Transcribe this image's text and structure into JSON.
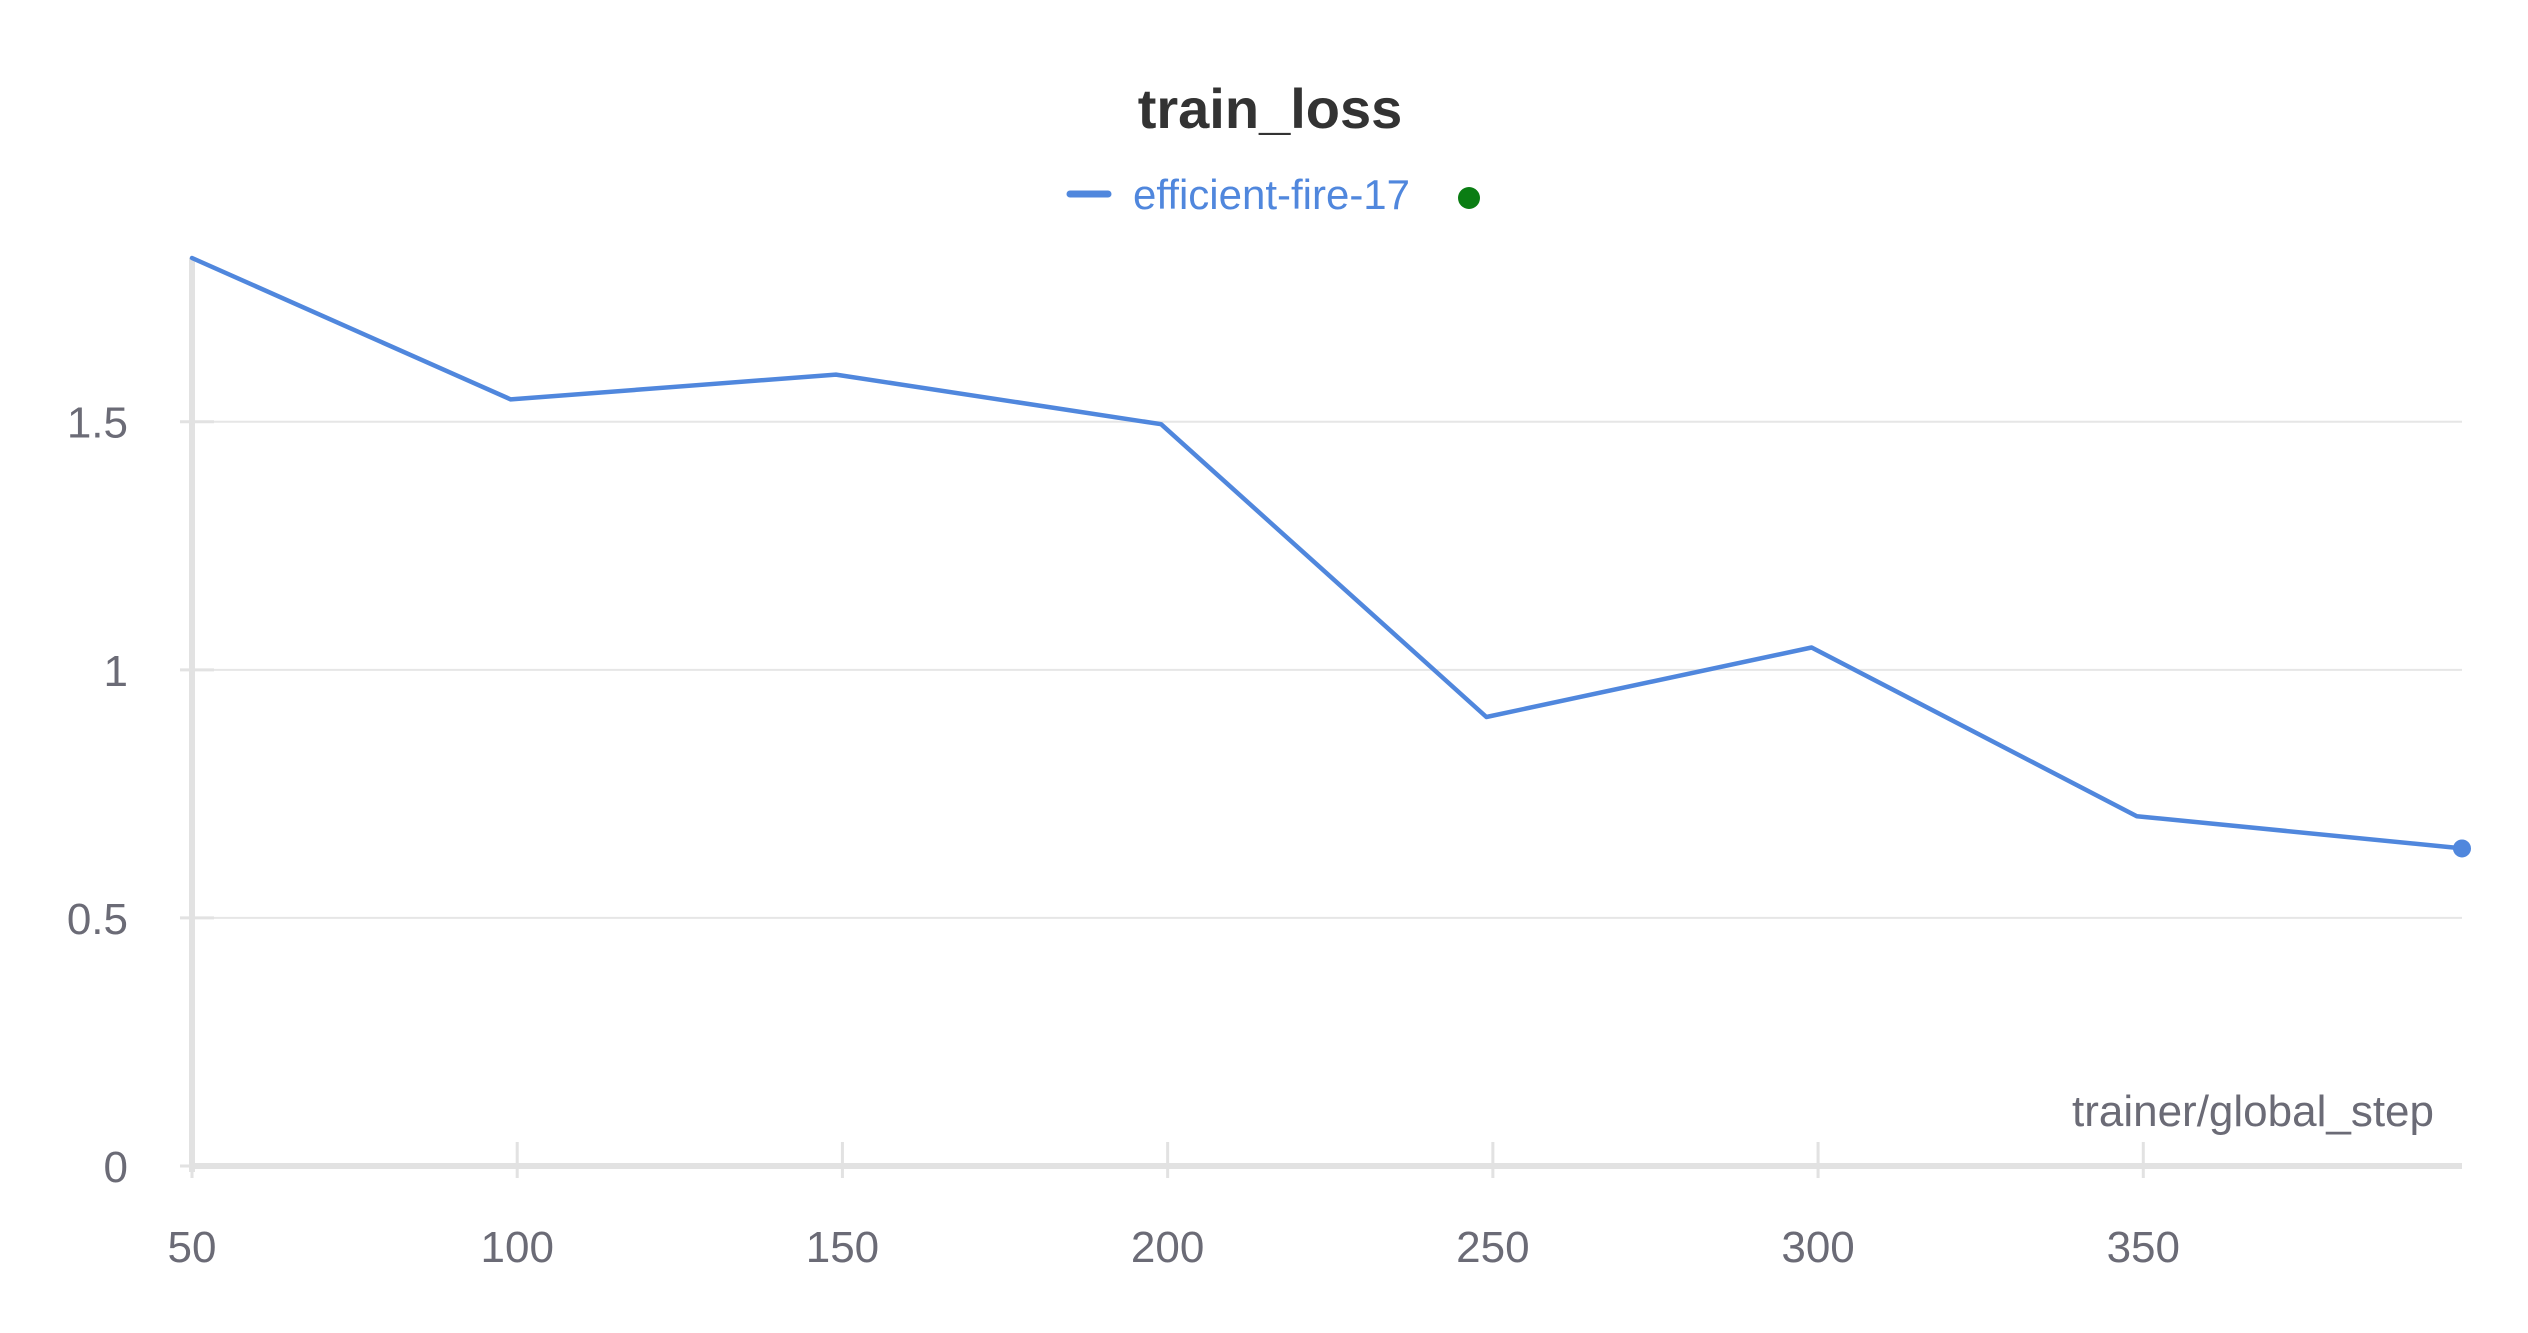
{
  "chart_data": {
    "type": "line",
    "title": "train_loss",
    "xlabel": "trainer/global_step",
    "ylabel": "",
    "xlim": [
      50,
      399
    ],
    "ylim": [
      0,
      1.83
    ],
    "x_ticks": [
      50,
      100,
      150,
      200,
      250,
      300,
      350
    ],
    "x_tick_labels": [
      "50",
      "100",
      "150",
      "200",
      "250",
      "300",
      "350"
    ],
    "y_ticks": [
      0,
      0.5,
      1,
      1.5
    ],
    "y_tick_labels": [
      "0",
      "0.5",
      "1",
      "1.5"
    ],
    "grid": true,
    "legend_position": "top-center",
    "series": [
      {
        "name": "efficient-fire-17",
        "color": "#5087dd",
        "status_color": "#0a7d13",
        "x": [
          50,
          99,
          149,
          199,
          249,
          299,
          349,
          399
        ],
        "y": [
          1.83,
          1.545,
          1.595,
          1.495,
          0.905,
          1.045,
          0.705,
          0.64
        ]
      }
    ]
  }
}
